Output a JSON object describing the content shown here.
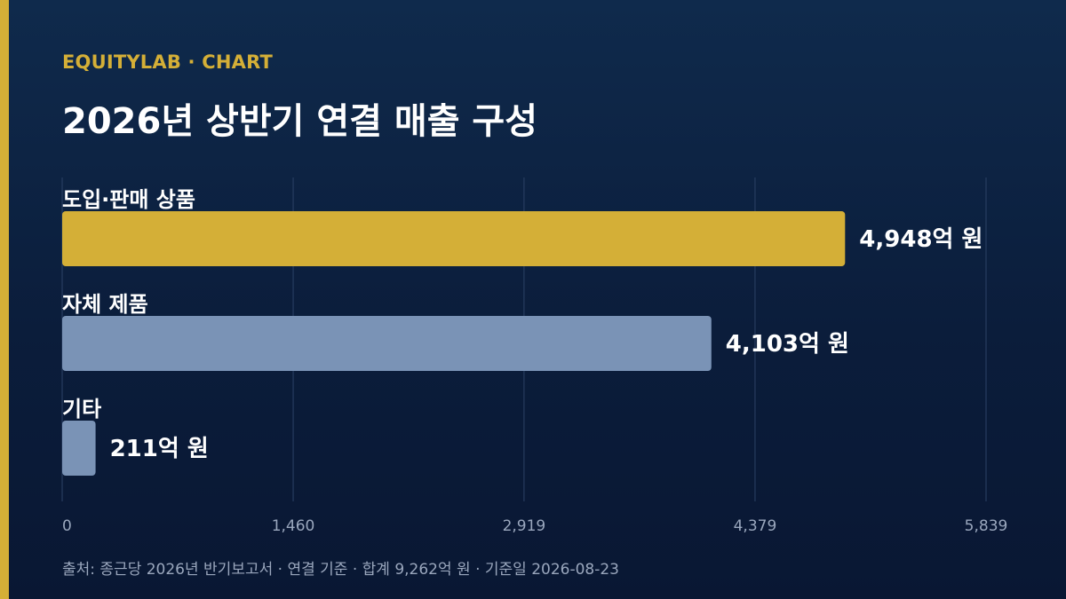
{
  "header": {
    "kicker": "EQUITYLAB · CHART",
    "title": "2026년 상반기 연결 매출 구성"
  },
  "chart_data": {
    "type": "bar",
    "orientation": "horizontal",
    "title": "2026년 상반기 연결 매출 구성",
    "categories": [
      "도입·판매 상품",
      "자체 제품",
      "기타"
    ],
    "values": [
      4948,
      4103,
      211
    ],
    "value_labels": [
      "4,948억 원",
      "4,103억 원",
      "211억 원"
    ],
    "bar_colors": [
      "#d4af37",
      "#7a93b6",
      "#7a93b6"
    ],
    "xlim": [
      0,
      5839
    ],
    "x_ticks": [
      0,
      1460,
      2919,
      4379,
      5839
    ],
    "x_tick_labels": [
      "0",
      "1,460",
      "2,919",
      "4,379",
      "5,839"
    ],
    "grid": true,
    "legend": "none"
  },
  "footer": {
    "source": "출처: 종근당 2026년 반기보고서 · 연결 기준 · 합계 9,262억 원 · 기준일 2026-08-23"
  },
  "colors": {
    "accent": "#d4af37",
    "secondary_bar": "#7a93b6",
    "grid": "#2c4266",
    "tick_text": "#9aa7bd"
  }
}
